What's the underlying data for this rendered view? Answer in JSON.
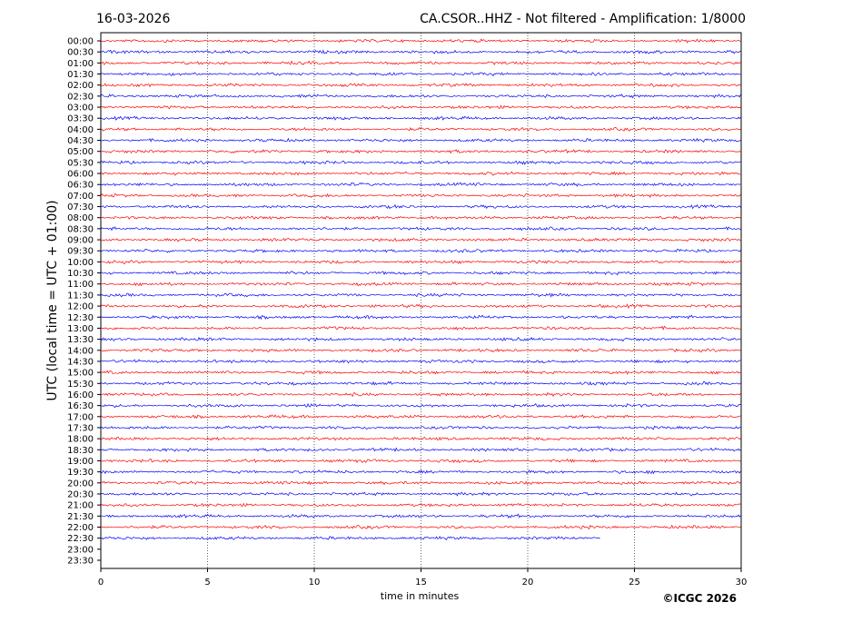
{
  "chart_data": {
    "type": "helicorder",
    "date": "16-03-2026",
    "title": "CA.CSOR..HHZ - Not filtered - Amplification: 1/8000",
    "ylabel": "UTC (local time = UTC + 01:00)",
    "xlabel": "time in minutes",
    "copyright": "©ICGC 2026",
    "categories": [
      "00:00",
      "00:30",
      "01:00",
      "01:30",
      "02:00",
      "02:30",
      "03:00",
      "03:30",
      "04:00",
      "04:30",
      "05:00",
      "05:30",
      "06:00",
      "06:30",
      "07:00",
      "07:30",
      "08:00",
      "08:30",
      "09:00",
      "09:30",
      "10:00",
      "10:30",
      "11:00",
      "11:30",
      "12:00",
      "12:30",
      "13:00",
      "13:30",
      "14:00",
      "14:30",
      "15:00",
      "15:30",
      "16:00",
      "16:30",
      "17:00",
      "17:30",
      "18:00",
      "18:30",
      "19:00",
      "19:30",
      "20:00",
      "20:30",
      "21:00",
      "21:30",
      "22:00",
      "22:30",
      "23:00",
      "23:30"
    ],
    "values": [
      30,
      30,
      30,
      30,
      30,
      30,
      30,
      30,
      30,
      30,
      30,
      30,
      30,
      30,
      30,
      30,
      30,
      30,
      30,
      30,
      30,
      30,
      30,
      30,
      30,
      30,
      30,
      30,
      30,
      30,
      30,
      30,
      30,
      30,
      30,
      30,
      30,
      30,
      30,
      30,
      30,
      30,
      30,
      30,
      30,
      23.4,
      null,
      null
    ],
    "colors": [
      "#ff0000",
      "#0000ff"
    ],
    "xlim": [
      0,
      30
    ],
    "xticks": [
      0,
      5,
      10,
      15,
      20,
      25,
      30
    ],
    "grid": true
  }
}
